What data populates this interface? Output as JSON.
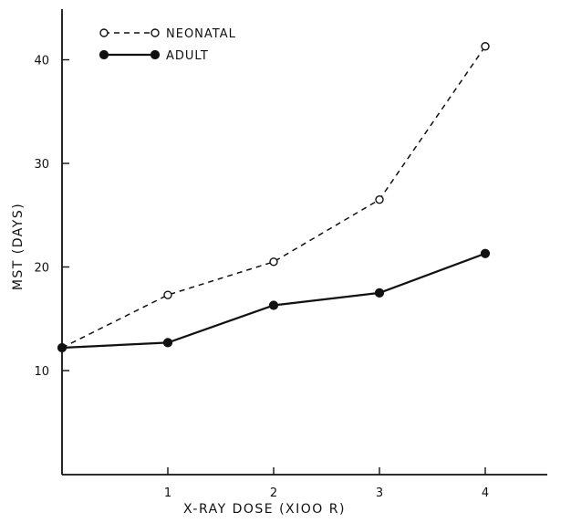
{
  "chart_data": {
    "type": "line",
    "xlabel": "X-RAY DOSE (XIOO R)",
    "ylabel": "MST (DAYS)",
    "x_ticks": [
      "1",
      "2",
      "3",
      "4"
    ],
    "y_ticks": [
      "10",
      "20",
      "30",
      "40"
    ],
    "xlim": [
      0,
      5
    ],
    "ylim": [
      0,
      45
    ],
    "grid": false,
    "legend_position": "top-left",
    "series": [
      {
        "name": "NEONATAL",
        "style": "dashed",
        "marker": "open-circle",
        "x": [
          0,
          1,
          2,
          3,
          4
        ],
        "y": [
          12.2,
          17.3,
          20.5,
          26.5,
          41.3
        ]
      },
      {
        "name": "ADULT",
        "style": "solid",
        "marker": "filled-circle",
        "x": [
          0,
          1,
          2,
          3,
          4
        ],
        "y": [
          12.2,
          12.7,
          16.3,
          17.5,
          21.3
        ]
      }
    ]
  }
}
